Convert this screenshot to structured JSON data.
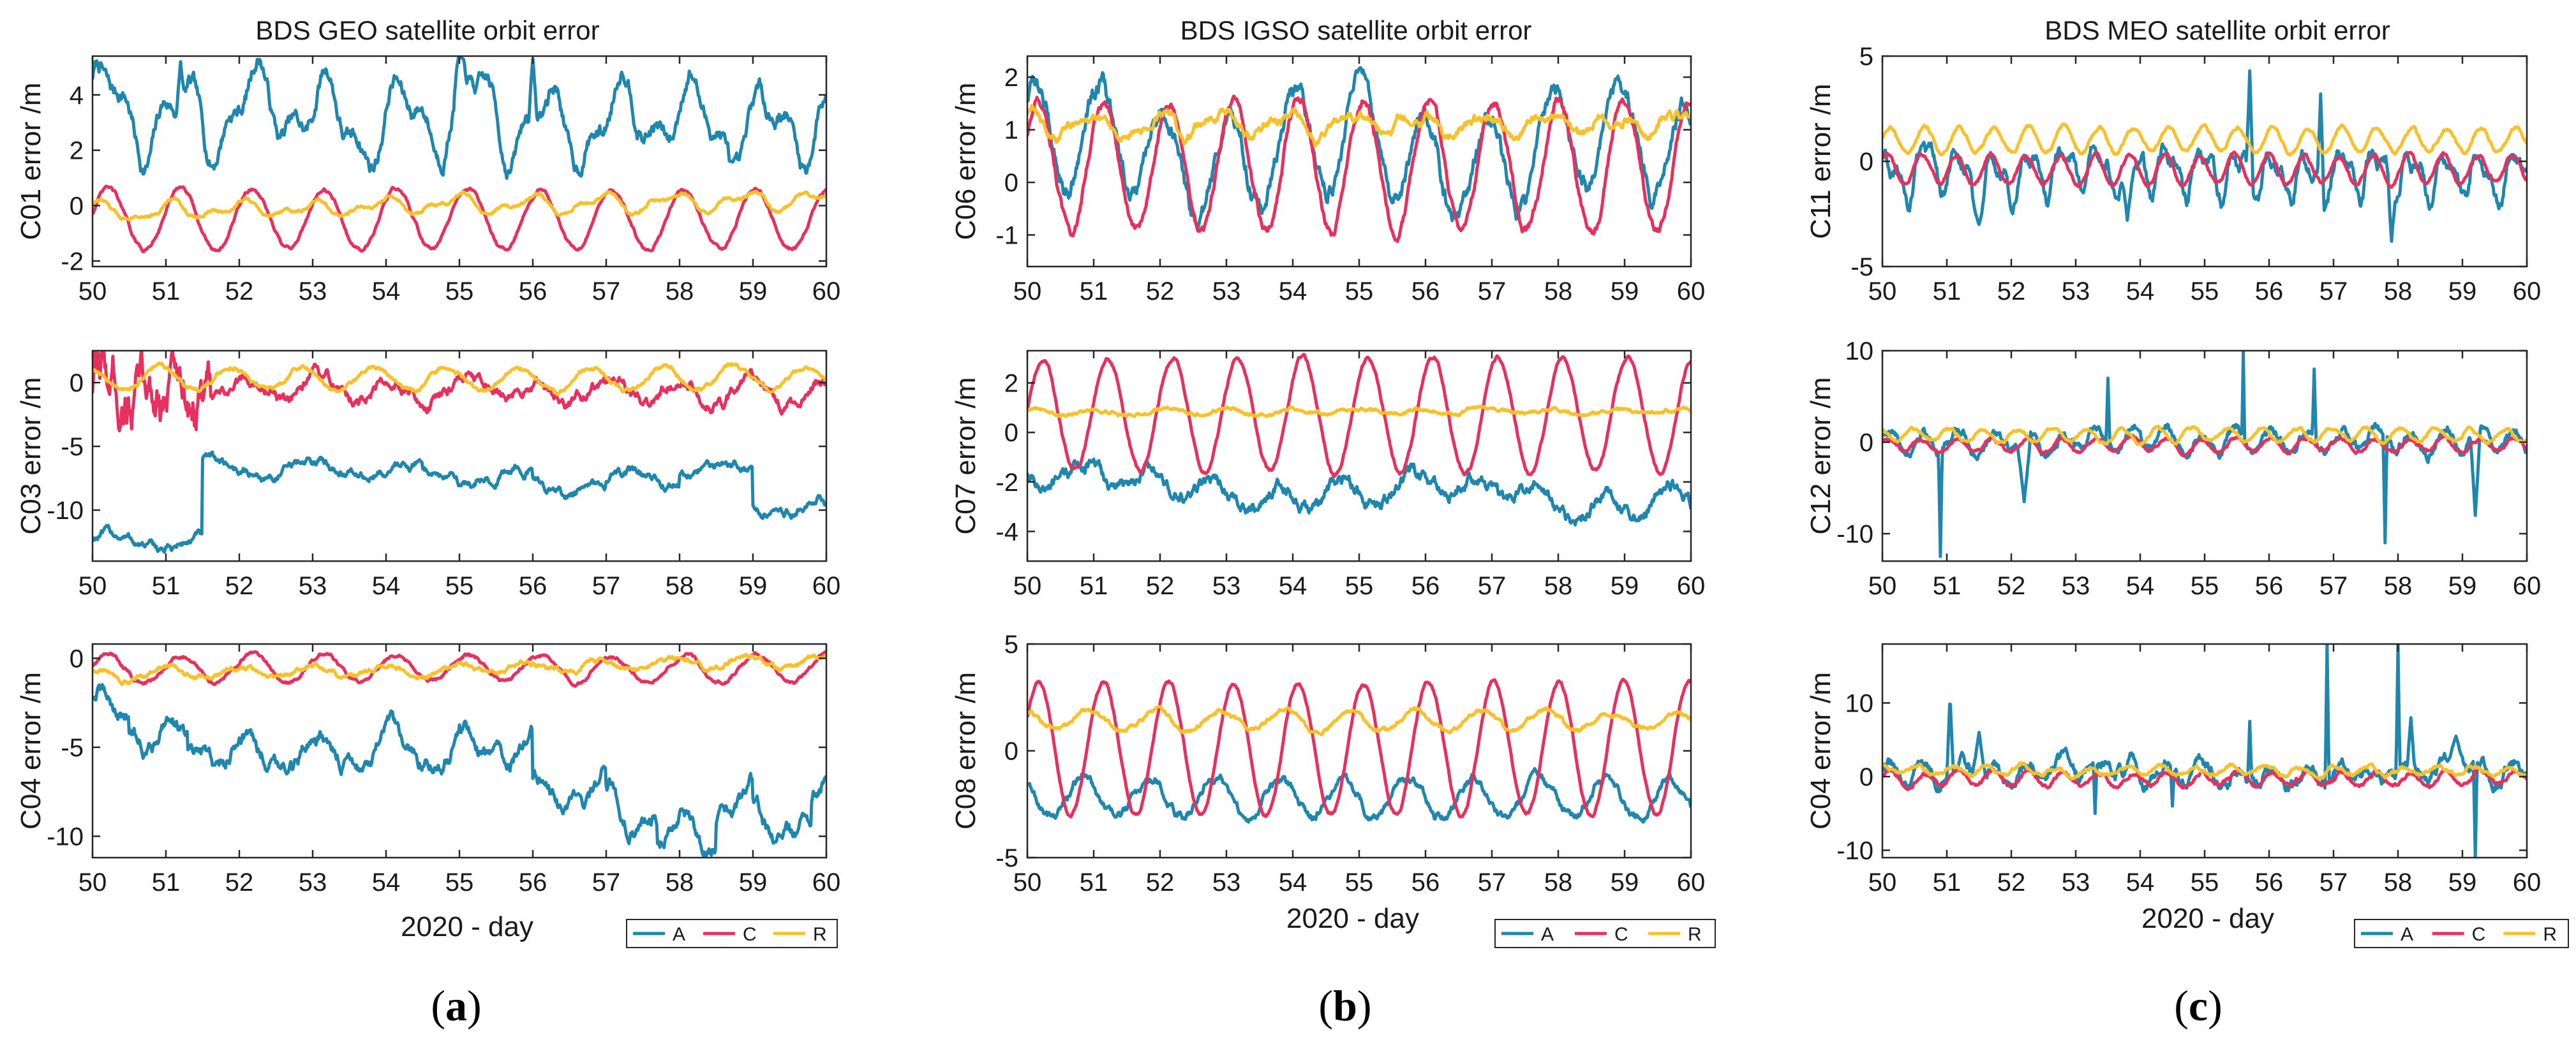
{
  "colors": {
    "A": "#1f86ad",
    "C": "#e8305f",
    "R": "#f7c12c",
    "axis": "#262626"
  },
  "panels": [
    {
      "label_open": "(",
      "label_letter": "a",
      "label_close": ")",
      "title": "BDS GEO satellite orbit error",
      "xlabel": "2020 - day"
    },
    {
      "label_open": "(",
      "label_letter": "b",
      "label_close": ")",
      "title": "BDS IGSO satellite orbit error",
      "xlabel": "2020 - day"
    },
    {
      "label_open": "(",
      "label_letter": "c",
      "label_close": ")",
      "title": "BDS MEO satellite orbit error",
      "xlabel": "2020 - day"
    }
  ],
  "legend": {
    "entries": [
      "A",
      "C",
      "R"
    ]
  },
  "chart_data": [
    {
      "type": "line",
      "panel": 0,
      "row": 0,
      "ylabel": "C01 error /m",
      "xlim": [
        50,
        60
      ],
      "ylim": [
        -2.2,
        5.4
      ],
      "yticks": [
        -2,
        0,
        2,
        4
      ],
      "xticks": [
        50,
        51,
        52,
        53,
        54,
        55,
        56,
        57,
        58,
        59,
        60
      ],
      "series": [
        {
          "name": "A",
          "model": {
            "mean": 3.2,
            "periods": [
              [
                1.2,
                1.0,
                0.3
              ],
              [
                0.6,
                0.45,
                1.1
              ],
              [
                0.4,
                2.6,
                2.0
              ]
            ],
            "noise": 0.18,
            "spikes": [
              [
                55.0,
                5.5,
                0.08
              ],
              [
                56.0,
                5.3,
                0.06
              ],
              [
                51.2,
                5.2,
                0.05
              ]
            ],
            "trend": -0.4
          }
        },
        {
          "name": "C",
          "model": {
            "mean": -0.5,
            "periods": [
              [
                1.1,
                0.98,
                0.2
              ]
            ],
            "noise": 0.04,
            "trend": 0
          }
        },
        {
          "name": "R",
          "model": {
            "mean": 0.0,
            "periods": [
              [
                0.25,
                0.98,
                1.1
              ],
              [
                0.15,
                0.5,
                0.3
              ]
            ],
            "noise": 0.04,
            "trend": 0.4
          }
        }
      ]
    },
    {
      "type": "line",
      "panel": 0,
      "row": 1,
      "ylabel": "C03 error /m",
      "xlim": [
        50,
        60
      ],
      "ylim": [
        -14,
        2.5
      ],
      "yticks": [
        -10,
        -5,
        0
      ],
      "xticks": [
        50,
        51,
        52,
        53,
        54,
        55,
        56,
        57,
        58,
        59,
        60
      ],
      "series": [
        {
          "name": "A",
          "model": {
            "mean": -7,
            "periods": [
              [
                0.6,
                1.4,
                0.5
              ]
            ],
            "noise": 0.2,
            "steps": [
              [
                50.0,
                -12.5
              ],
              [
                51.5,
                -6.8
              ],
              [
                54.5,
                -7.3
              ],
              [
                56.0,
                -8.2
              ],
              [
                57.0,
                -7.6
              ],
              [
                58.0,
                -6.8
              ],
              [
                59.0,
                -9.8
              ]
            ],
            "trend": 0
          }
        },
        {
          "name": "C",
          "model": {
            "mean": -0.6,
            "periods": [
              [
                0.9,
                0.98,
                0.4
              ]
            ],
            "noise": 0.25,
            "early_noise": [
              50.0,
              51.6,
              1.2
            ],
            "trend": 0
          }
        },
        {
          "name": "R",
          "model": {
            "mean": 0.3,
            "periods": [
              [
                0.9,
                0.98,
                2.0
              ]
            ],
            "noise": 0.1,
            "trend": 0
          }
        }
      ]
    },
    {
      "type": "line",
      "panel": 0,
      "row": 2,
      "ylabel": "C04 error /m",
      "xlim": [
        50,
        60
      ],
      "ylim": [
        -11.2,
        0.8
      ],
      "yticks": [
        -10,
        -5,
        0
      ],
      "xticks": [
        50,
        51,
        52,
        53,
        54,
        55,
        56,
        57,
        58,
        59,
        60
      ],
      "series": [
        {
          "name": "A",
          "model": {
            "mean": -5.0,
            "periods": [
              [
                0.8,
                0.98,
                0.6
              ],
              [
                0.4,
                0.5,
                1.0
              ]
            ],
            "noise": 0.25,
            "steps": [
              [
                50.0,
                -3.0
              ],
              [
                50.5,
                -4.2
              ],
              [
                51.3,
                -5.4
              ],
              [
                52.0,
                -5.2
              ],
              [
                53.0,
                -5.4
              ],
              [
                54.2,
                -5.3
              ],
              [
                55.0,
                -5.0
              ],
              [
                56.0,
                -7.6
              ],
              [
                57.0,
                -8.6
              ],
              [
                57.7,
                -9.8
              ],
              [
                58.5,
                -8.6
              ],
              [
                59.0,
                -9.4
              ],
              [
                59.8,
                -8.0
              ]
            ],
            "trend": 0
          }
        },
        {
          "name": "C",
          "model": {
            "mean": -0.6,
            "periods": [
              [
                0.8,
                0.98,
                0.2
              ]
            ],
            "noise": 0.06,
            "trend": 0
          }
        },
        {
          "name": "R",
          "model": {
            "mean": -0.6,
            "periods": [
              [
                0.3,
                0.98,
                1.2
              ]
            ],
            "noise": 0.08,
            "trend": 0.8
          }
        }
      ]
    },
    {
      "type": "line",
      "panel": 1,
      "row": 0,
      "ylabel": "C06 error /m",
      "xlim": [
        50,
        60
      ],
      "ylim": [
        -1.6,
        2.4
      ],
      "yticks": [
        -1,
        0,
        1,
        2
      ],
      "xticks": [
        50,
        51,
        52,
        53,
        54,
        55,
        56,
        57,
        58,
        59,
        60
      ],
      "series": [
        {
          "name": "A",
          "model": {
            "mean": 0.6,
            "periods": [
              [
                1.0,
                0.98,
                0.9
              ],
              [
                0.4,
                4.0,
                0.5
              ]
            ],
            "noise": 0.1,
            "trend": 0
          }
        },
        {
          "name": "C",
          "model": {
            "mean": 0.3,
            "periods": [
              [
                1.25,
                0.98,
                0.5
              ]
            ],
            "noise": 0.05,
            "trend": 0
          }
        },
        {
          "name": "R",
          "model": {
            "mean": 1.1,
            "periods": [
              [
                0.2,
                0.98,
                1.5
              ],
              [
                0.08,
                0.5,
                0.2
              ]
            ],
            "noise": 0.05,
            "trend": 0
          }
        }
      ]
    },
    {
      "type": "line",
      "panel": 1,
      "row": 1,
      "ylabel": "C07 error /m",
      "xlim": [
        50,
        60
      ],
      "ylim": [
        -5.2,
        3.3
      ],
      "yticks": [
        -4,
        -2,
        0,
        2
      ],
      "xticks": [
        50,
        51,
        52,
        53,
        54,
        55,
        56,
        57,
        58,
        59,
        60
      ],
      "series": [
        {
          "name": "A",
          "model": {
            "mean": -2.4,
            "periods": [
              [
                0.5,
                0.98,
                2.3
              ],
              [
                0.4,
                5.0,
                0.3
              ]
            ],
            "noise": 0.15,
            "trend": -0.6
          }
        },
        {
          "name": "C",
          "model": {
            "mean": 0.7,
            "periods": [
              [
                2.3,
                0.98,
                0.1
              ]
            ],
            "noise": 0.05,
            "trend": 0
          }
        },
        {
          "name": "R",
          "model": {
            "mean": 0.85,
            "periods": [
              [
                0.1,
                0.98,
                1.0
              ]
            ],
            "noise": 0.04,
            "trend": 0
          }
        }
      ]
    },
    {
      "type": "line",
      "panel": 1,
      "row": 2,
      "ylabel": "C08 error /m",
      "xlim": [
        50,
        60
      ],
      "ylim": [
        -5,
        5
      ],
      "yticks": [
        -5,
        0,
        5
      ],
      "xticks": [
        50,
        51,
        52,
        53,
        54,
        55,
        56,
        57,
        58,
        59,
        60
      ],
      "series": [
        {
          "name": "A",
          "model": {
            "mean": -2.2,
            "periods": [
              [
                0.9,
                0.98,
                2.4
              ]
            ],
            "noise": 0.12,
            "trend": 0
          }
        },
        {
          "name": "C",
          "model": {
            "mean": 0.1,
            "periods": [
              [
                3.1,
                0.98,
                0.5
              ]
            ],
            "noise": 0.05,
            "trend": 0
          }
        },
        {
          "name": "R",
          "model": {
            "mean": 1.4,
            "periods": [
              [
                0.45,
                0.98,
                1.8
              ]
            ],
            "noise": 0.06,
            "trend": 0
          }
        }
      ]
    },
    {
      "type": "line",
      "panel": 2,
      "row": 0,
      "ylabel": "C11 error /m",
      "xlim": [
        50,
        60
      ],
      "ylim": [
        -5,
        5
      ],
      "yticks": [
        -5,
        0,
        5
      ],
      "xticks": [
        50,
        51,
        52,
        53,
        54,
        55,
        56,
        57,
        58,
        59,
        60
      ],
      "series": [
        {
          "name": "A",
          "model": {
            "mean": -0.5,
            "periods": [
              [
                0.9,
                0.54,
                0.3
              ],
              [
                0.5,
                0.27,
                1.5
              ]
            ],
            "noise": 0.2,
            "spikes": [
              [
                55.7,
                4.3,
                0.05
              ],
              [
                56.8,
                3.2,
                0.05
              ],
              [
                57.9,
                -3.8,
                0.06
              ],
              [
                51.5,
                -3.0,
                0.12
              ],
              [
                53.8,
                -2.8,
                0.12
              ]
            ],
            "trend": 0
          }
        },
        {
          "name": "C",
          "model": {
            "mean": -0.4,
            "periods": [
              [
                0.7,
                0.54,
                0.8
              ]
            ],
            "noise": 0.05,
            "trend": 0
          }
        },
        {
          "name": "R",
          "model": {
            "mean": 1.0,
            "periods": [
              [
                0.6,
                0.54,
                0.2
              ]
            ],
            "noise": 0.05,
            "trend": 0
          }
        }
      ]
    },
    {
      "type": "line",
      "panel": 2,
      "row": 1,
      "ylabel": "C12 error /m",
      "xlim": [
        50,
        60
      ],
      "ylim": [
        -13,
        10
      ],
      "yticks": [
        -10,
        0,
        10
      ],
      "xticks": [
        50,
        51,
        52,
        53,
        54,
        55,
        56,
        57,
        58,
        59,
        60
      ],
      "series": [
        {
          "name": "A",
          "model": {
            "mean": 0.2,
            "periods": [
              [
                1.2,
                0.54,
                0.4
              ]
            ],
            "noise": 0.3,
            "spikes": [
              [
                50.9,
                -12.5,
                0.03
              ],
              [
                52.2,
                -6.5,
                0.1
              ],
              [
                53.5,
                7.0,
                0.03
              ],
              [
                55.6,
                10.0,
                0.02
              ],
              [
                56.7,
                8.0,
                0.03
              ],
              [
                57.8,
                -11.0,
                0.03
              ],
              [
                59.2,
                -8.0,
                0.08
              ]
            ],
            "trend": 0
          }
        },
        {
          "name": "C",
          "model": {
            "mean": -0.3,
            "periods": [
              [
                0.7,
                0.54,
                0.6
              ]
            ],
            "noise": 0.1,
            "trend": 0
          }
        },
        {
          "name": "R",
          "model": {
            "mean": 0.8,
            "periods": [
              [
                0.7,
                0.54,
                2.2
              ]
            ],
            "noise": 0.1,
            "trend": 0
          }
        }
      ]
    },
    {
      "type": "line",
      "panel": 2,
      "row": 2,
      "ylabel": "C04 error /m",
      "xlim": [
        50,
        60
      ],
      "ylim": [
        -11,
        18
      ],
      "yticks": [
        -10,
        0,
        10
      ],
      "xticks": [
        50,
        51,
        52,
        53,
        54,
        55,
        56,
        57,
        58,
        59,
        60
      ],
      "series": [
        {
          "name": "A",
          "model": {
            "mean": 0.5,
            "periods": [
              [
                1.0,
                0.54,
                0.4
              ]
            ],
            "noise": 0.5,
            "spikes": [
              [
                51.05,
                11.0,
                0.05
              ],
              [
                51.5,
                6.0,
                0.1
              ],
              [
                55.7,
                7.5,
                0.03
              ],
              [
                56.9,
                18.0,
                0.03
              ],
              [
                58.0,
                18.0,
                0.03
              ],
              [
                58.2,
                8.0,
                0.06
              ],
              [
                58.9,
                5.5,
                0.15
              ],
              [
                59.2,
                -11.0,
                0.03
              ],
              [
                53.3,
                -5.0,
                0.03
              ],
              [
                54.5,
                -4.0,
                0.03
              ]
            ],
            "trend": 0
          }
        },
        {
          "name": "C",
          "model": {
            "mean": -0.3,
            "periods": [
              [
                0.9,
                0.54,
                0.3
              ]
            ],
            "noise": 0.15,
            "trend": 0
          }
        },
        {
          "name": "R",
          "model": {
            "mean": 0.8,
            "periods": [
              [
                0.6,
                0.54,
                1.5
              ]
            ],
            "noise": 0.15,
            "trend": 0
          }
        }
      ]
    }
  ]
}
